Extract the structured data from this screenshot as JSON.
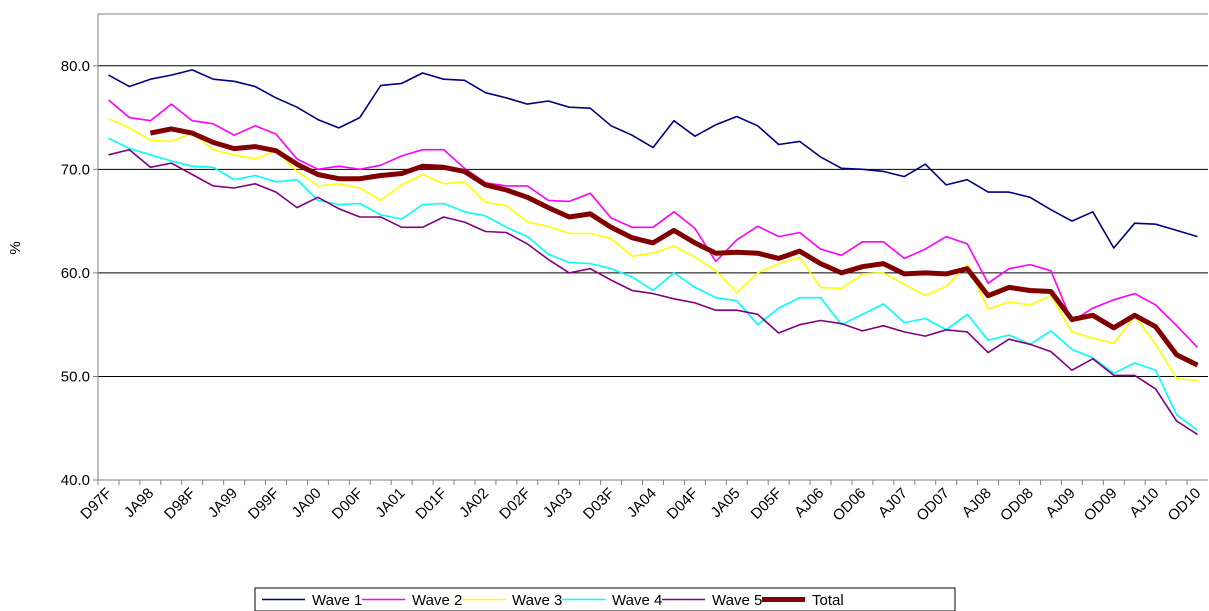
{
  "chart_data": {
    "type": "line",
    "y_label": "%",
    "categories": [
      "D97F",
      null,
      "JA98",
      null,
      "D98F",
      null,
      "JA99",
      null,
      "D99F",
      null,
      "JA00",
      null,
      "D00F",
      null,
      "JA01",
      null,
      "D01F",
      null,
      "JA02",
      null,
      "D02F",
      null,
      "JA03",
      null,
      "D03F",
      null,
      "JA04",
      null,
      "D04F",
      null,
      "JA05",
      null,
      "D05F",
      null,
      "AJ06",
      null,
      "OD06",
      null,
      "AJ07",
      null,
      "OD07",
      null,
      "AJ08",
      null,
      "OD08",
      null,
      "AJ09",
      null,
      "OD09",
      null,
      "AJ10",
      null,
      "OD10"
    ],
    "ylim": [
      40,
      85
    ],
    "yticks": [
      {
        "value": 40,
        "label": "40.0"
      },
      {
        "value": 50,
        "label": "50.0"
      },
      {
        "value": 60,
        "label": "60.0"
      },
      {
        "value": 70,
        "label": "70.0"
      },
      {
        "value": 80,
        "label": "80.0"
      }
    ],
    "grid": true,
    "legend": "bottom",
    "series": [
      {
        "name": "Wave 1",
        "color": "#000080",
        "values": [
          79.1,
          78.0,
          78.7,
          79.1,
          79.6,
          78.7,
          78.5,
          78.0,
          76.9,
          76.0,
          74.8,
          74.0,
          75.0,
          78.1,
          78.3,
          79.3,
          78.7,
          78.6,
          77.4,
          76.9,
          76.3,
          76.6,
          76.0,
          75.9,
          74.2,
          73.3,
          72.1,
          74.7,
          73.2,
          74.3,
          75.1,
          74.2,
          72.4,
          72.7,
          71.2,
          70.1,
          70.0,
          69.8,
          69.3,
          70.5,
          68.5,
          69.0,
          67.8,
          67.8,
          67.3,
          66.1,
          65.0,
          65.9,
          62.4,
          64.8,
          64.7,
          64.1,
          63.5
        ]
      },
      {
        "name": "Wave 2",
        "color": "#ff00ff",
        "values": [
          76.7,
          75.0,
          74.7,
          76.3,
          74.7,
          74.4,
          73.3,
          74.2,
          73.4,
          71.0,
          70.0,
          70.3,
          70.0,
          70.4,
          71.3,
          71.9,
          71.9,
          70.1,
          68.7,
          68.4,
          68.4,
          67.0,
          66.9,
          67.7,
          65.3,
          64.4,
          64.4,
          65.9,
          64.3,
          61.1,
          63.2,
          64.5,
          63.5,
          63.9,
          62.3,
          61.7,
          63.0,
          63.0,
          61.4,
          62.3,
          63.5,
          62.8,
          59.0,
          60.4,
          60.8,
          60.2,
          55.3,
          56.6,
          57.4,
          58.0,
          56.9,
          54.9,
          52.8
        ]
      },
      {
        "name": "Wave 3",
        "color": "#ffff00",
        "values": [
          74.9,
          74.0,
          72.8,
          72.7,
          73.5,
          71.9,
          71.4,
          71.0,
          71.8,
          69.8,
          68.4,
          68.6,
          68.2,
          67.0,
          68.5,
          69.5,
          68.6,
          68.8,
          66.8,
          66.5,
          64.9,
          64.5,
          63.8,
          63.8,
          63.3,
          61.6,
          61.9,
          62.6,
          61.5,
          60.2,
          58.1,
          60.0,
          60.9,
          61.5,
          58.6,
          58.5,
          59.9,
          60.0,
          58.9,
          57.8,
          58.7,
          60.8,
          56.5,
          57.2,
          56.9,
          57.8,
          54.3,
          53.7,
          53.2,
          55.8,
          53.1,
          49.8,
          49.6
        ]
      },
      {
        "name": "Wave 4",
        "color": "#00ffff",
        "values": [
          73.0,
          72.0,
          71.4,
          70.8,
          70.3,
          70.2,
          69.0,
          69.4,
          68.8,
          69.0,
          67.0,
          66.6,
          66.7,
          65.6,
          65.2,
          66.6,
          66.7,
          65.9,
          65.5,
          64.4,
          63.5,
          61.8,
          61.0,
          60.9,
          60.4,
          59.6,
          58.3,
          60.0,
          58.6,
          57.6,
          57.3,
          55.0,
          56.6,
          57.6,
          57.6,
          55.0,
          56.0,
          57.0,
          55.2,
          55.6,
          54.5,
          56.0,
          53.5,
          54.0,
          53.1,
          54.4,
          52.6,
          51.8,
          50.3,
          51.3,
          50.6,
          46.3,
          44.8
        ]
      },
      {
        "name": "Wave 5",
        "color": "#800080",
        "values": [
          71.4,
          71.9,
          70.2,
          70.6,
          69.5,
          68.4,
          68.2,
          68.6,
          67.8,
          66.3,
          67.3,
          66.2,
          65.4,
          65.4,
          64.4,
          64.4,
          65.4,
          64.9,
          64.0,
          63.9,
          62.8,
          61.3,
          60.0,
          60.4,
          59.3,
          58.3,
          58.0,
          57.5,
          57.1,
          56.4,
          56.4,
          56.0,
          54.2,
          55.0,
          55.4,
          55.1,
          54.4,
          54.9,
          54.3,
          53.9,
          54.5,
          54.3,
          52.3,
          53.6,
          53.1,
          52.4,
          50.6,
          51.7,
          50.1,
          50.1,
          48.8,
          45.7,
          44.4
        ]
      },
      {
        "name": "Total",
        "color": "#800000",
        "values": [
          null,
          null,
          73.5,
          73.9,
          73.5,
          72.6,
          72.0,
          72.2,
          71.8,
          70.5,
          69.5,
          69.1,
          69.1,
          69.4,
          69.6,
          70.3,
          70.2,
          69.8,
          68.5,
          68.0,
          67.3,
          66.3,
          65.4,
          65.7,
          64.4,
          63.4,
          62.9,
          64.1,
          62.9,
          61.9,
          62.0,
          61.9,
          61.4,
          62.1,
          60.9,
          60.0,
          60.6,
          60.9,
          59.9,
          60.0,
          59.9,
          60.4,
          57.8,
          58.6,
          58.3,
          58.2,
          55.5,
          55.9,
          54.7,
          55.9,
          54.8,
          52.1,
          51.1
        ]
      }
    ]
  }
}
